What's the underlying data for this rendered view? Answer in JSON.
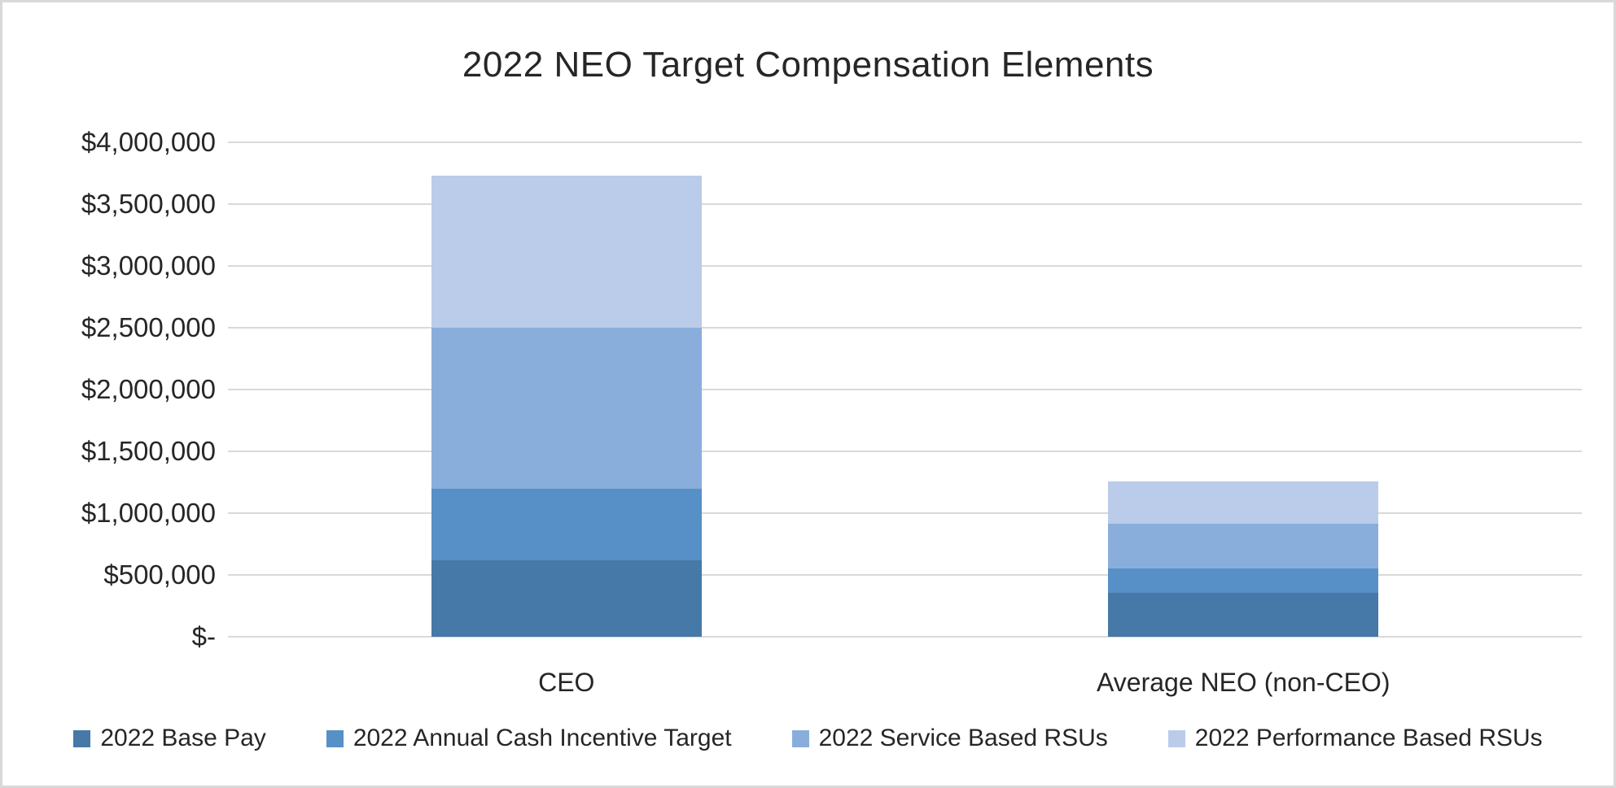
{
  "chart_data": {
    "type": "bar",
    "subtype": "stacked-column",
    "title": "2022 NEO Target Compensation Elements",
    "categories": [
      "CEO",
      "Average NEO (non-CEO)"
    ],
    "series": [
      {
        "name": "2022 Base Pay",
        "color": "#4678A8",
        "values": [
          620000,
          355000
        ]
      },
      {
        "name": "2022 Annual Cash Incentive Target",
        "color": "#5690C6",
        "values": [
          580000,
          200000
        ]
      },
      {
        "name": "2022 Service Based RSUs",
        "color": "#8AAEDC",
        "values": [
          1300000,
          360000
        ]
      },
      {
        "name": "2022 Performance Based RSUs",
        "color": "#BACCE9",
        "values": [
          1230000,
          340000
        ]
      }
    ],
    "stack_totals": [
      3730000,
      1255000
    ],
    "y_axis": {
      "min": 0,
      "max": 4000000,
      "step": 500000,
      "ticks": [
        {
          "label": "$4,000,000",
          "value": 4000000
        },
        {
          "label": "$3,500,000",
          "value": 3500000
        },
        {
          "label": "$3,000,000",
          "value": 3000000
        },
        {
          "label": "$2,500,000",
          "value": 2500000
        },
        {
          "label": "$2,000,000",
          "value": 2000000
        },
        {
          "label": "$1,500,000",
          "value": 1500000
        },
        {
          "label": "$1,000,000",
          "value": 1000000
        },
        {
          "label": "$500,000",
          "value": 500000
        },
        {
          "label": "$-",
          "value": 0
        }
      ]
    },
    "grid": true,
    "legend_position": "bottom",
    "colors": {
      "gridline": "#D9D9D9",
      "text": "#262626",
      "background": "#FFFFFF",
      "border": "#D8D8D8"
    }
  }
}
